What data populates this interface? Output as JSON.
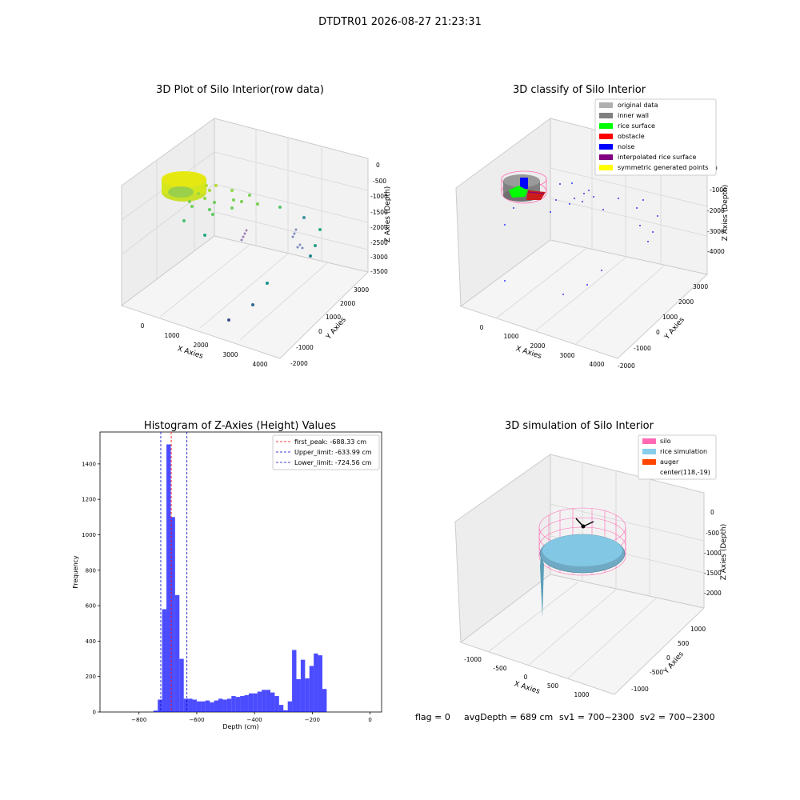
{
  "suptitle": "DTDTR01 2026-08-27 21:23:31",
  "colors": {
    "hist": "#0000ff",
    "peak_line": "#ff0000",
    "limit_line": "#0000cc",
    "silo": "#ff69b4",
    "rice": "#87ceeb",
    "auger": "#ff4500",
    "grid": "#cccccc"
  },
  "panel1": {
    "title": "3D Plot of Silo Interior(row data)",
    "xlabel": "X Axies",
    "ylabel": "Y Axies",
    "zlabel": "Z Axies (Depth)",
    "xticks": [
      "0",
      "1000",
      "2000",
      "3000",
      "4000"
    ],
    "yticks": [
      "-2000",
      "-1000",
      "0",
      "1000",
      "2000",
      "3000"
    ],
    "zticks": [
      "0",
      "-500",
      "-1000",
      "-1500",
      "-2000",
      "-2500",
      "-3000",
      "-3500"
    ]
  },
  "panel2": {
    "title": "3D classify of Silo Interior",
    "xlabel": "X Axies",
    "ylabel": "Y Axies",
    "zlabel": "Z Axies (Depth)",
    "xticks": [
      "0",
      "1000",
      "2000",
      "3000",
      "4000"
    ],
    "yticks": [
      "-2000",
      "-1000",
      "0",
      "1000",
      "2000",
      "3000"
    ],
    "zticks": [
      "0",
      "-1000",
      "-2000",
      "-3000",
      "-4000"
    ],
    "legend": [
      {
        "label": "original data",
        "color": "#b0b0b0"
      },
      {
        "label": "inner wall",
        "color": "#808080"
      },
      {
        "label": "rice surface",
        "color": "#00ff00"
      },
      {
        "label": "obstacle",
        "color": "#ff0000"
      },
      {
        "label": "noise",
        "color": "#0000ff"
      },
      {
        "label": "interpolated rice surface",
        "color": "#800080"
      },
      {
        "label": "symmetric generated points",
        "color": "#ffff00"
      }
    ]
  },
  "panel4": {
    "title": "3D simulation of Silo Interior",
    "xlabel": "X Axies",
    "ylabel": "Y Axies",
    "zlabel": "Z Axies (Depth)",
    "xticks": [
      "-1000",
      "-500",
      "0",
      "500",
      "1000"
    ],
    "yticks": [
      "-1000",
      "-500",
      "0",
      "500",
      "1000"
    ],
    "zticks": [
      "0",
      "-500",
      "-1000",
      "-1500",
      "-2000"
    ],
    "legend": [
      {
        "label": "silo",
        "color": "#ff69b4"
      },
      {
        "label": "rice simulation",
        "color": "#87ceeb"
      },
      {
        "label": "auger",
        "color": "#ff4500"
      },
      {
        "label": "center(118,-19)",
        "color": ""
      }
    ]
  },
  "footer": {
    "flag": "flag = 0",
    "avg": "avgDepth = 689 cm",
    "sv1": "sv1 = 700~2300",
    "sv2": "sv2 = 700~2300"
  },
  "chart_data": [
    {
      "type": "bar",
      "title": "Histogram of Z-Axies (Height) Values",
      "xlabel": "Depth (cm)",
      "ylabel": "Frequency",
      "xlim": [
        -935,
        40
      ],
      "ylim": [
        0,
        1580
      ],
      "bin_width": 15,
      "bins_start": [
        -750,
        -735,
        -720,
        -705,
        -690,
        -675,
        -660,
        -645,
        -630,
        -615,
        -600,
        -585,
        -570,
        -555,
        -540,
        -525,
        -510,
        -495,
        -480,
        -465,
        -450,
        -435,
        -420,
        -405,
        -390,
        -375,
        -360,
        -345,
        -330,
        -315,
        -300,
        -285,
        -270,
        -255,
        -240,
        -225,
        -210,
        -195,
        -180,
        -165,
        -150,
        -135,
        -120,
        -105,
        -90,
        -75,
        -60,
        -45,
        -30,
        -15
      ],
      "values": [
        8,
        70,
        580,
        1510,
        1100,
        660,
        300,
        75,
        75,
        70,
        60,
        60,
        65,
        55,
        65,
        75,
        70,
        75,
        90,
        85,
        90,
        95,
        105,
        105,
        115,
        125,
        125,
        110,
        90,
        40,
        10,
        60,
        350,
        185,
        295,
        190,
        260,
        330,
        320,
        130,
        0,
        0,
        0,
        0,
        0,
        0,
        0,
        0,
        0,
        0
      ],
      "xticks": [
        -800,
        -600,
        -400,
        -200,
        0
      ],
      "yticks": [
        0,
        200,
        400,
        600,
        800,
        1000,
        1200,
        1400
      ],
      "vlines": [
        {
          "name": "first_peak: -688.33 cm",
          "x": -688.33,
          "style": "red"
        },
        {
          "name": "Upper_limit: -633.99 cm",
          "x": -633.99,
          "style": "blue"
        },
        {
          "name": "Lower_limit: -724.56 cm",
          "x": -724.56,
          "style": "blue"
        }
      ],
      "legend_position": "upper right"
    }
  ]
}
